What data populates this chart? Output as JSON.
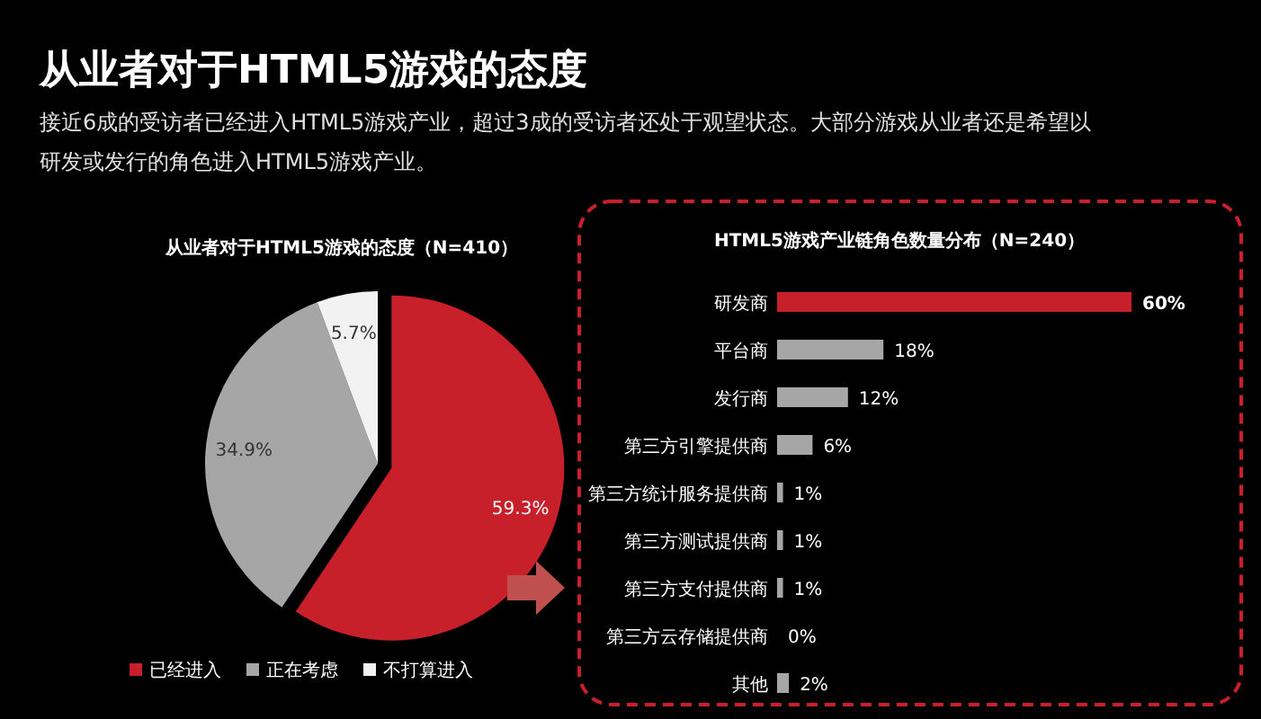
{
  "chart_data": [
    {
      "type": "other",
      "title": "从业者对于HTML5游戏的态度",
      "subtitle": "接近6成的受访者已经进入HTML5游戏产业，超过3成的受访者还处于观望状态。大部分游戏从业者还是希望以研发或发行的角色进入HTML5游戏产业。"
    },
    {
      "type": "pie",
      "title": "从业者对于HTML5游戏的态度（N=410）",
      "categories": [
        "已经进入",
        "正在考虑",
        "不打算进入"
      ],
      "values": [
        59.3,
        34.9,
        5.7
      ],
      "colors": [
        "#c8202a",
        "#a6a6a6",
        "#f2f2f2"
      ],
      "value_labels": [
        "59.3%",
        "34.9%",
        "5.7%"
      ],
      "legend": "bottom"
    },
    {
      "type": "bar",
      "orientation": "horizontal",
      "title": "HTML5游戏产业链角色数量分布（N=240）",
      "categories": [
        "研发商",
        "平台商",
        "发行商",
        "第三方引擎提供商",
        "第三方统计服务提供商",
        "第三方测试提供商",
        "第三方支付提供商",
        "第三方云存储提供商",
        "其他"
      ],
      "values": [
        60,
        18,
        12,
        6,
        1,
        1,
        1,
        0,
        2
      ],
      "colors": [
        "#c8202a",
        "#a6a6a6",
        "#a6a6a6",
        "#a6a6a6",
        "#a6a6a6",
        "#a6a6a6",
        "#a6a6a6",
        "#a6a6a6",
        "#a6a6a6"
      ],
      "value_labels": [
        "60%",
        "18%",
        "12%",
        "6%",
        "1%",
        "1%",
        "1%",
        "0%",
        "2%"
      ]
    }
  ]
}
